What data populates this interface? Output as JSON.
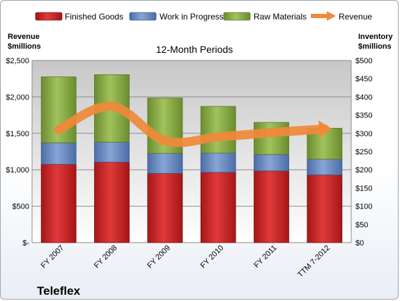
{
  "chart_data": {
    "type": "bar",
    "subtitle": "12-Month Periods",
    "left_axis_label": [
      "Revenue",
      "$millions"
    ],
    "right_axis_label": [
      "Inventory",
      "$millions"
    ],
    "company": "Teleflex",
    "categories": [
      "FY 2007",
      "FY 2008",
      "FY 2009",
      "FY 2010",
      "FY 2011",
      "TTM 7-2012"
    ],
    "stacked": true,
    "series": [
      {
        "name": "Finished Goods",
        "color": "#cc2222",
        "axis": "right",
        "values": [
          215,
          221,
          190,
          193,
          197,
          186
        ]
      },
      {
        "name": "Work in Progress",
        "color": "#6f8fc4",
        "axis": "right",
        "values": [
          59,
          55,
          55,
          53,
          45,
          43
        ]
      },
      {
        "name": "Raw Materials",
        "color": "#8eb14c",
        "axis": "right",
        "values": [
          181,
          185,
          152,
          128,
          88,
          85
        ]
      }
    ],
    "line_series": {
      "name": "Revenue",
      "color": "#f0893a",
      "axis": "left",
      "values": [
        1550,
        1870,
        1400,
        1450,
        1510,
        1560
      ]
    },
    "left_axis": {
      "min": 0,
      "max": 2500,
      "ticks": [
        "$-",
        "$500",
        "$1,000",
        "$1,500",
        "$2,000",
        "$2,500"
      ]
    },
    "right_axis": {
      "min": 0,
      "max": 500,
      "ticks": [
        "$0",
        "$50",
        "$100",
        "$150",
        "$200",
        "$250",
        "$300",
        "$350",
        "$400",
        "$450",
        "$500"
      ]
    },
    "grid": true,
    "legend_position": "top"
  }
}
